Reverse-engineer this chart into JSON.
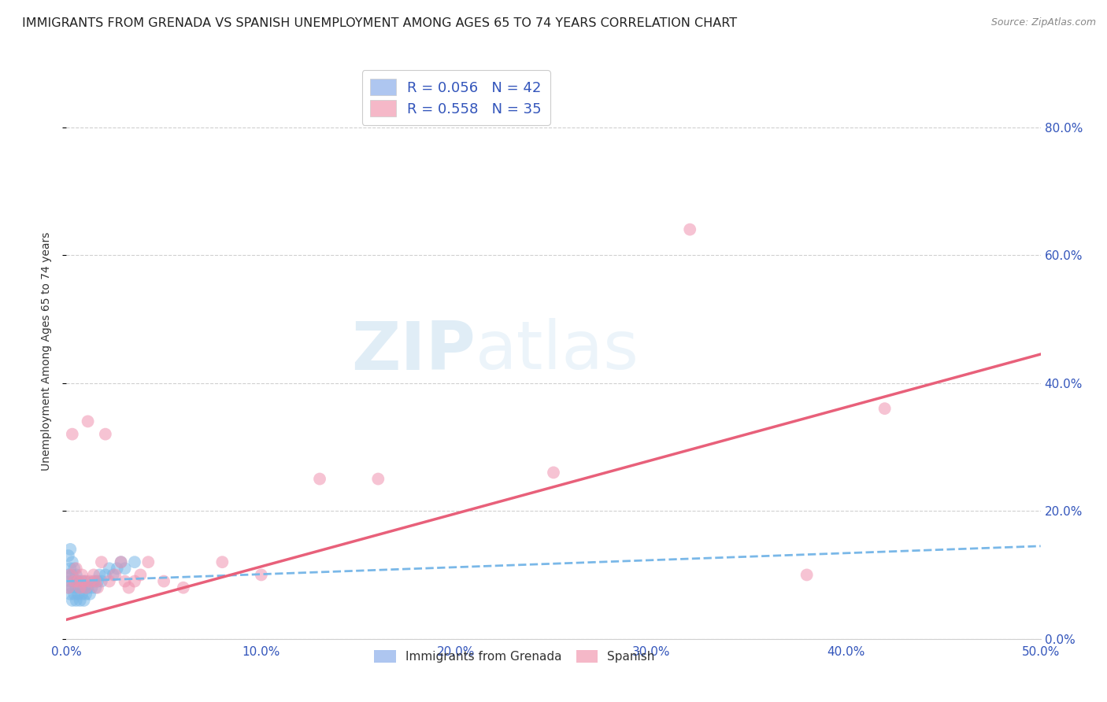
{
  "title": "IMMIGRANTS FROM GRENADA VS SPANISH UNEMPLOYMENT AMONG AGES 65 TO 74 YEARS CORRELATION CHART",
  "source": "Source: ZipAtlas.com",
  "ylabel_label": "Unemployment Among Ages 65 to 74 years",
  "xlim": [
    0,
    0.5
  ],
  "ylim": [
    0,
    0.9
  ],
  "watermark": "ZIPatlas",
  "blue_scatter_x": [
    0.001,
    0.001,
    0.001,
    0.002,
    0.002,
    0.002,
    0.002,
    0.003,
    0.003,
    0.003,
    0.003,
    0.004,
    0.004,
    0.004,
    0.005,
    0.005,
    0.005,
    0.006,
    0.006,
    0.007,
    0.007,
    0.008,
    0.008,
    0.009,
    0.009,
    0.01,
    0.01,
    0.011,
    0.012,
    0.013,
    0.014,
    0.015,
    0.016,
    0.017,
    0.018,
    0.02,
    0.022,
    0.024,
    0.026,
    0.028,
    0.03,
    0.035
  ],
  "blue_scatter_y": [
    0.08,
    0.1,
    0.13,
    0.07,
    0.09,
    0.11,
    0.14,
    0.06,
    0.08,
    0.1,
    0.12,
    0.07,
    0.09,
    0.11,
    0.06,
    0.08,
    0.1,
    0.07,
    0.09,
    0.06,
    0.08,
    0.07,
    0.09,
    0.06,
    0.08,
    0.07,
    0.09,
    0.08,
    0.07,
    0.08,
    0.09,
    0.08,
    0.09,
    0.1,
    0.09,
    0.1,
    0.11,
    0.1,
    0.11,
    0.12,
    0.11,
    0.12
  ],
  "pink_scatter_x": [
    0.001,
    0.002,
    0.003,
    0.004,
    0.005,
    0.006,
    0.007,
    0.008,
    0.009,
    0.01,
    0.011,
    0.012,
    0.014,
    0.015,
    0.016,
    0.018,
    0.02,
    0.022,
    0.025,
    0.028,
    0.03,
    0.032,
    0.035,
    0.038,
    0.042,
    0.05,
    0.06,
    0.08,
    0.1,
    0.13,
    0.16,
    0.25,
    0.32,
    0.38,
    0.42
  ],
  "pink_scatter_y": [
    0.08,
    0.1,
    0.32,
    0.09,
    0.11,
    0.09,
    0.08,
    0.1,
    0.09,
    0.08,
    0.34,
    0.09,
    0.1,
    0.09,
    0.08,
    0.12,
    0.32,
    0.09,
    0.1,
    0.12,
    0.09,
    0.08,
    0.09,
    0.1,
    0.12,
    0.09,
    0.08,
    0.12,
    0.1,
    0.25,
    0.25,
    0.26,
    0.64,
    0.1,
    0.36
  ],
  "blue_line_x": [
    0.0,
    0.5
  ],
  "blue_line_y": [
    0.09,
    0.145
  ],
  "pink_line_x": [
    0.0,
    0.5
  ],
  "pink_line_y": [
    0.03,
    0.445
  ],
  "scatter_size": 130,
  "scatter_alpha": 0.55,
  "blue_color": "#7ab8e8",
  "pink_color": "#f092b0",
  "blue_line_color": "#7ab8e8",
  "pink_line_color": "#e8607a",
  "grid_color": "#d0d0d0",
  "background_color": "#ffffff",
  "title_fontsize": 11.5,
  "source_fontsize": 9,
  "axis_label_fontsize": 10,
  "tick_fontsize": 11,
  "legend_fontsize": 13
}
